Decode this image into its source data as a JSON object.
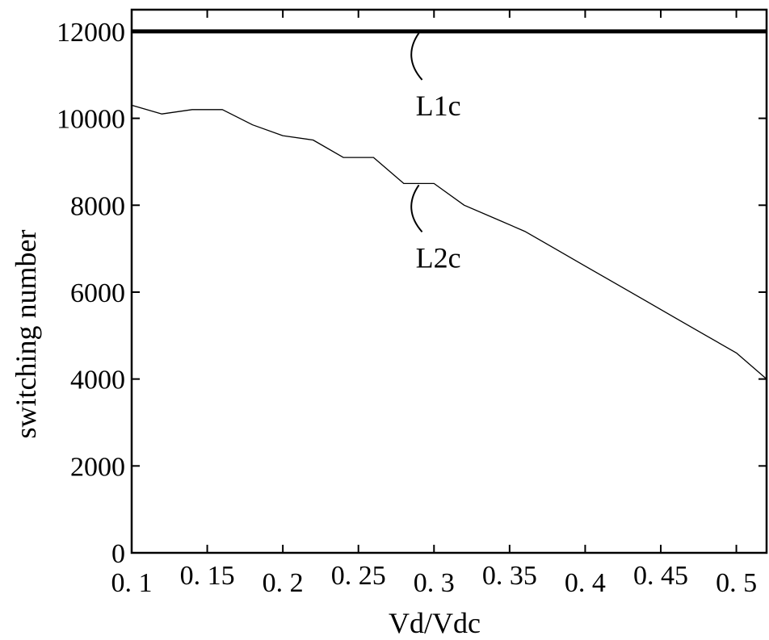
{
  "chart_data": {
    "type": "line",
    "xlabel": "Vd/Vdc",
    "ylabel": "switching number",
    "xlim": [
      0.1,
      0.52
    ],
    "ylim": [
      0,
      12500
    ],
    "xticks": [
      0.1,
      0.15,
      0.2,
      0.25,
      0.3,
      0.35,
      0.4,
      0.45,
      0.5
    ],
    "xtick_labels": [
      "0. 1",
      "0. 15",
      "0. 2",
      "0. 25",
      "0. 3",
      "0. 35",
      "0. 4",
      "0. 45",
      "0. 5"
    ],
    "yticks": [
      0,
      2000,
      4000,
      6000,
      8000,
      10000,
      12000
    ],
    "ytick_labels": [
      "0",
      "2000",
      "4000",
      "6000",
      "8000",
      "10000",
      "12000"
    ],
    "grid": false,
    "series": [
      {
        "name": "L1c",
        "x": [
          0.1,
          0.52
        ],
        "y": [
          12000,
          12000
        ]
      },
      {
        "name": "L2c",
        "x": [
          0.1,
          0.12,
          0.14,
          0.16,
          0.18,
          0.2,
          0.22,
          0.24,
          0.26,
          0.28,
          0.3,
          0.32,
          0.34,
          0.36,
          0.38,
          0.4,
          0.42,
          0.44,
          0.46,
          0.48,
          0.5,
          0.52
        ],
        "y": [
          10300,
          10100,
          10200,
          10200,
          9850,
          9600,
          9500,
          9100,
          9100,
          8500,
          8500,
          8000,
          7700,
          7400,
          7000,
          6600,
          6200,
          5800,
          5400,
          5000,
          4600,
          4000
        ]
      }
    ],
    "annotations": [
      {
        "text": "L1c",
        "series": "L1c",
        "x": 0.29,
        "y": 12000
      },
      {
        "text": "L2c",
        "series": "L2c",
        "x": 0.29,
        "y": 8500
      }
    ]
  }
}
